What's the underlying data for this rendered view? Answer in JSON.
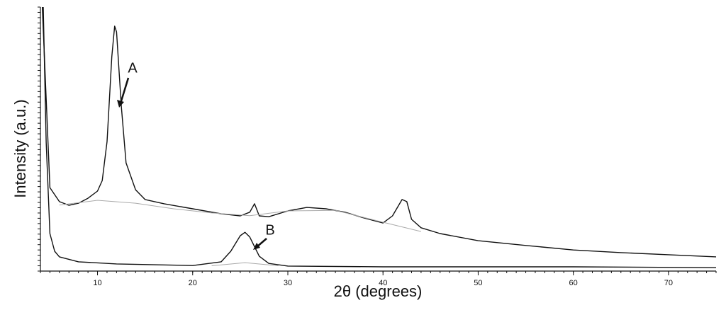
{
  "chart_data": {
    "type": "line",
    "xlabel": "2θ (degrees)",
    "ylabel": "Intensity (a.u.)",
    "xlim": [
      4,
      75
    ],
    "ylim": [
      0,
      100
    ],
    "xticks": [
      10,
      20,
      30,
      40,
      50,
      60,
      70
    ],
    "series": [
      {
        "name": "A",
        "color": "#111111",
        "x": [
          4.2,
          5,
          6,
          7,
          8,
          9,
          10,
          10.5,
          11,
          11.5,
          11.8,
          12,
          12.5,
          13,
          14,
          15,
          17,
          20,
          23,
          25,
          26,
          26.5,
          27,
          28,
          30,
          32,
          34,
          36,
          38,
          40,
          41,
          42,
          42.5,
          43,
          44,
          46,
          50,
          55,
          60,
          65,
          70,
          75
        ],
        "values": [
          100,
          31.6,
          26.3,
          24.9,
          25.7,
          27.6,
          30.3,
          34.3,
          49.1,
          81.2,
          92.8,
          90.6,
          62.5,
          41.0,
          30.8,
          27.1,
          25.5,
          23.6,
          21.7,
          20.9,
          22.3,
          25.5,
          20.9,
          20.6,
          22.8,
          24.1,
          23.6,
          22.3,
          20.1,
          18.2,
          20.9,
          27.1,
          26.3,
          19.6,
          16.4,
          14.2,
          11.5,
          9.7,
          8.0,
          7.0,
          6.2,
          5.4
        ]
      },
      {
        "name": "B",
        "color": "#111111",
        "x": [
          4.3,
          4.6,
          5,
          5.5,
          6,
          8,
          12,
          20,
          23,
          24,
          25,
          25.5,
          26,
          27,
          28,
          30,
          40,
          60,
          75
        ],
        "values": [
          100,
          49,
          14.2,
          7.5,
          5.4,
          3.5,
          2.7,
          2.1,
          3.5,
          7.5,
          13.4,
          14.7,
          12.9,
          5.6,
          2.9,
          1.9,
          1.6,
          1.6,
          1.3
        ]
      },
      {
        "color": "#aaaaaa",
        "x": [
          6,
          10,
          14,
          18,
          22,
          26,
          30,
          35,
          40,
          44
        ],
        "values": [
          25,
          26.8,
          25.7,
          23.6,
          22,
          21,
          22.8,
          23,
          18.5,
          15
        ]
      },
      {
        "color": "#aaaaaa",
        "x": [
          22,
          25.5,
          29
        ],
        "values": [
          2,
          3.2,
          2
        ]
      }
    ]
  }
}
